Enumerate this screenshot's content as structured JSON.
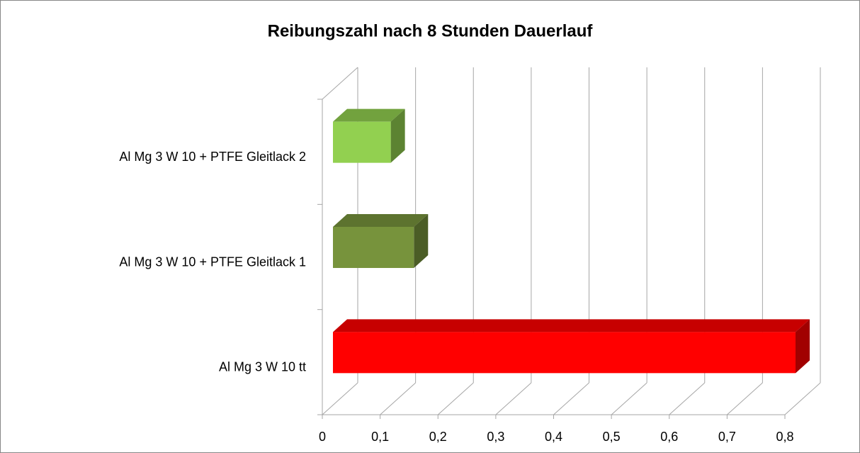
{
  "chart_data": {
    "type": "bar3d_horizontal",
    "title": "Reibungszahl nach 8 Stunden Dauerlauf",
    "categories": [
      "Al Mg 3 W 10  + PTFE Gleitlack 2",
      "Al Mg 3 W 10  + PTFE Gleitlack 1",
      "Al Mg 3 W 10 tt"
    ],
    "values": [
      0.1,
      0.14,
      0.8
    ],
    "colors": [
      "#92d050",
      "#77933c",
      "#ff0000"
    ],
    "xlim": [
      0,
      0.8
    ],
    "xticks": [
      0,
      {
        "value": 0.1,
        "label": "0,1"
      },
      {
        "value": 0.2,
        "label": "0,2"
      },
      {
        "value": 0.3,
        "label": "0,3"
      },
      {
        "value": 0.4,
        "label": "0,4"
      },
      {
        "value": 0.5,
        "label": "0,5"
      },
      {
        "value": 0.6,
        "label": "0,6"
      },
      {
        "value": 0.7,
        "label": "0,7"
      },
      {
        "value": 0.8,
        "label": "0,8"
      }
    ],
    "grid": true
  }
}
